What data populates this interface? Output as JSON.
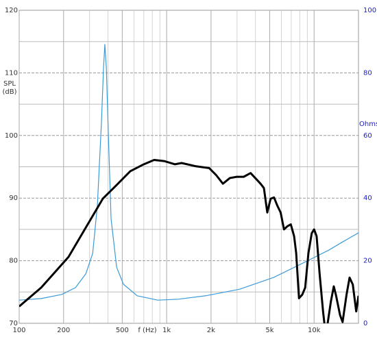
{
  "chart_data": {
    "type": "line",
    "xlabel": "f (Hz)",
    "ylabel": [
      "SPL",
      "(dB)"
    ],
    "y2label": "Ohms",
    "xlog": true,
    "grid": true,
    "xlim": [
      100,
      20000
    ],
    "xticks": [
      100,
      200,
      500,
      {
        "value": 1000,
        "label": "1k"
      },
      {
        "value": 2000,
        "label": "2k"
      },
      {
        "value": 5000,
        "label": "5k"
      },
      {
        "value": 10000,
        "label": "10k"
      }
    ],
    "xminorticks": [
      300,
      400,
      600,
      700,
      800,
      900,
      3000,
      4000,
      6000,
      7000,
      8000,
      9000
    ],
    "ylim": [
      70,
      120
    ],
    "yticks": [
      70,
      80,
      90,
      100,
      110,
      120
    ],
    "yminorticks": [
      75,
      85,
      95,
      105,
      115
    ],
    "y2lim": [
      0,
      100
    ],
    "y2ticks": [
      0,
      20,
      40,
      60,
      80,
      100
    ],
    "series": [
      {
        "color": "#000000",
        "x": [
          100,
          141,
          216,
          369,
          458,
          567,
          700,
          823,
          968,
          1137,
          1263,
          1566,
          1941,
          2162,
          2408,
          2683,
          2990,
          3330,
          3710,
          3990,
          4332,
          4567,
          4813,
          5070,
          5347,
          5630,
          5930,
          6250,
          6590,
          6950,
          7320,
          7560,
          7900,
          8320,
          8700,
          9150,
          9640,
          10000,
          10400,
          10900,
          11500,
          12000,
          13000,
          13600,
          14100,
          15000,
          15600,
          16600,
          17400,
          18300,
          19300,
          20000
        ],
        "values": [
          72.7,
          75.7,
          80.6,
          89.9,
          92.1,
          94.3,
          95.4,
          96.1,
          95.9,
          95.4,
          95.6,
          95.1,
          94.8,
          93.7,
          92.3,
          93.2,
          93.4,
          93.4,
          94.0,
          93.2,
          92.3,
          91.6,
          87.7,
          89.9,
          90.1,
          88.8,
          87.7,
          85.0,
          85.5,
          85.8,
          83.9,
          81.2,
          74.0,
          74.6,
          75.7,
          81.2,
          84.4,
          85.0,
          83.9,
          77.9,
          71.9,
          68.0,
          73.5,
          75.9,
          74.4,
          71.3,
          70.2,
          74.6,
          77.3,
          76.2,
          71.9,
          74.4
        ]
      },
      {
        "color": "#3a9ad9",
        "axis": "y2",
        "x": [
          100,
          141,
          194,
          241,
          283,
          315,
          339,
          361,
          373,
          381,
          390,
          403,
          420,
          458,
          509,
          631,
          870,
          1200,
          1840,
          3130,
          5347,
          9150,
          12600,
          15600,
          20000
        ],
        "values": [
          7.4,
          7.9,
          9.2,
          11.4,
          15.8,
          22.3,
          37.6,
          63.9,
          81.4,
          89.1,
          81.4,
          59.5,
          33.3,
          17.9,
          12.5,
          8.8,
          7.4,
          7.7,
          8.8,
          10.9,
          14.7,
          20.1,
          23.4,
          26.0,
          28.9
        ]
      }
    ]
  }
}
